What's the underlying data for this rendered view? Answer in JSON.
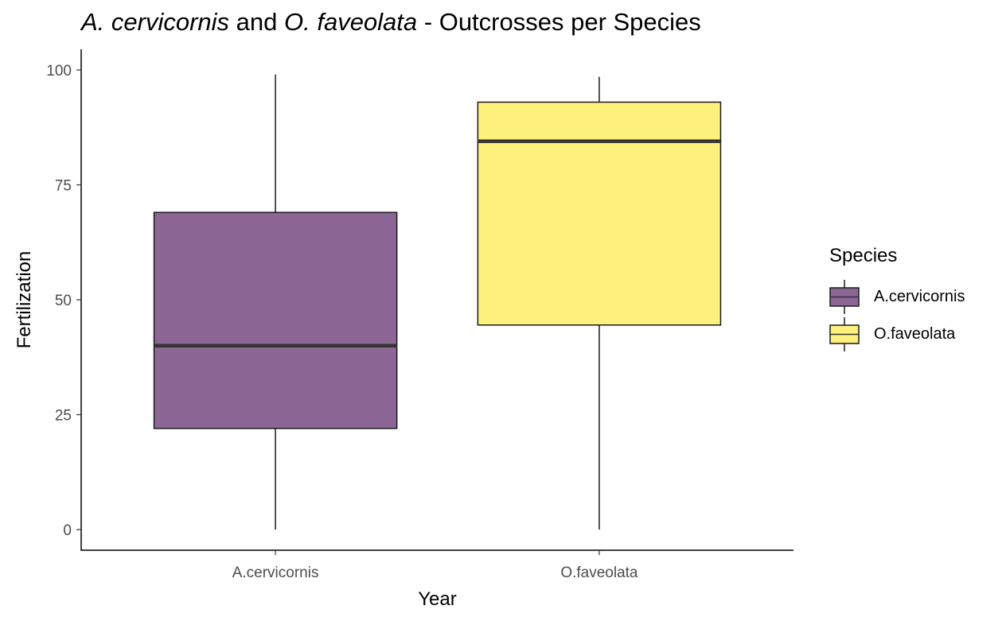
{
  "chart_data": {
    "type": "boxplot",
    "title": {
      "italic_1": "A. cervicornis",
      "plain_1": " and ",
      "italic_2": "O. faveolata",
      "plain_2": " - Outcrosses per Species"
    },
    "xlabel": "Year",
    "ylabel": "Fertilization",
    "ylim": [
      -4.5,
      104.5
    ],
    "yticks": [
      0,
      25,
      50,
      75,
      100
    ],
    "categories": [
      "A.cervicornis",
      "O.faveolata"
    ],
    "boxes": [
      {
        "category": "A.cervicornis",
        "min": 0,
        "q1": 22,
        "median": 40,
        "q3": 69,
        "max": 99,
        "color": "#8C6796"
      },
      {
        "category": "O.faveolata",
        "min": 0,
        "q1": 44.5,
        "median": 84.5,
        "q3": 93,
        "max": 98.5,
        "color": "#FDF07D"
      }
    ],
    "legend": {
      "title": "Species",
      "placement": "right",
      "items": [
        {
          "label": "A.cervicornis",
          "color": "#8C6796"
        },
        {
          "label": "O.faveolata",
          "color": "#FDF07D"
        }
      ]
    },
    "grid": false
  }
}
